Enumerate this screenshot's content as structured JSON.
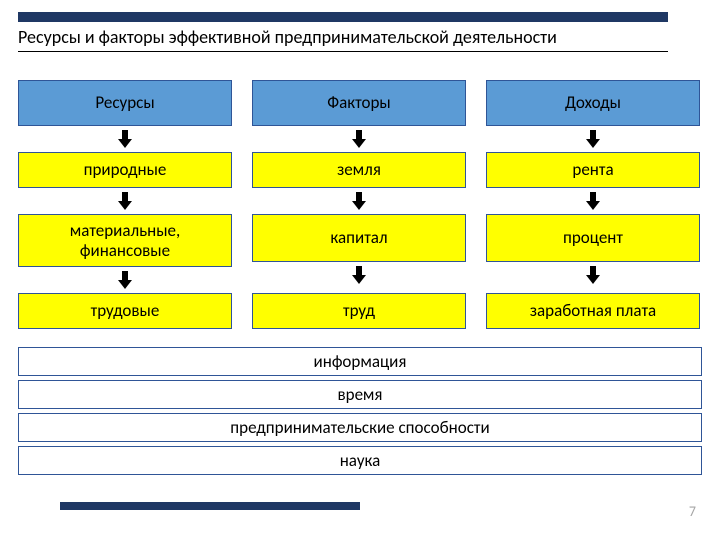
{
  "title": "Ресурсы и факторы эффективной предпринимательской деятельности",
  "page_number": "7",
  "colors": {
    "dark_bar": "#1f3864",
    "header_fill": "#5b9bd5",
    "yellow_fill": "#ffff00",
    "border": "#2f5597",
    "arrow": "#000000",
    "page_num": "#a6a6a6"
  },
  "headers": {
    "c0": "Ресурсы",
    "c1": "Факторы",
    "c2": "Доходы"
  },
  "rows": [
    {
      "c0": "природные",
      "c1": "земля",
      "c2": "рента"
    },
    {
      "c0": "материальные, финансовые",
      "c1": "капитал",
      "c2": "процент"
    },
    {
      "c0": "трудовые",
      "c1": "труд",
      "c2": "заработная плата"
    }
  ],
  "wide": [
    "информация",
    "время",
    "предпринимательские способности",
    "наука"
  ]
}
